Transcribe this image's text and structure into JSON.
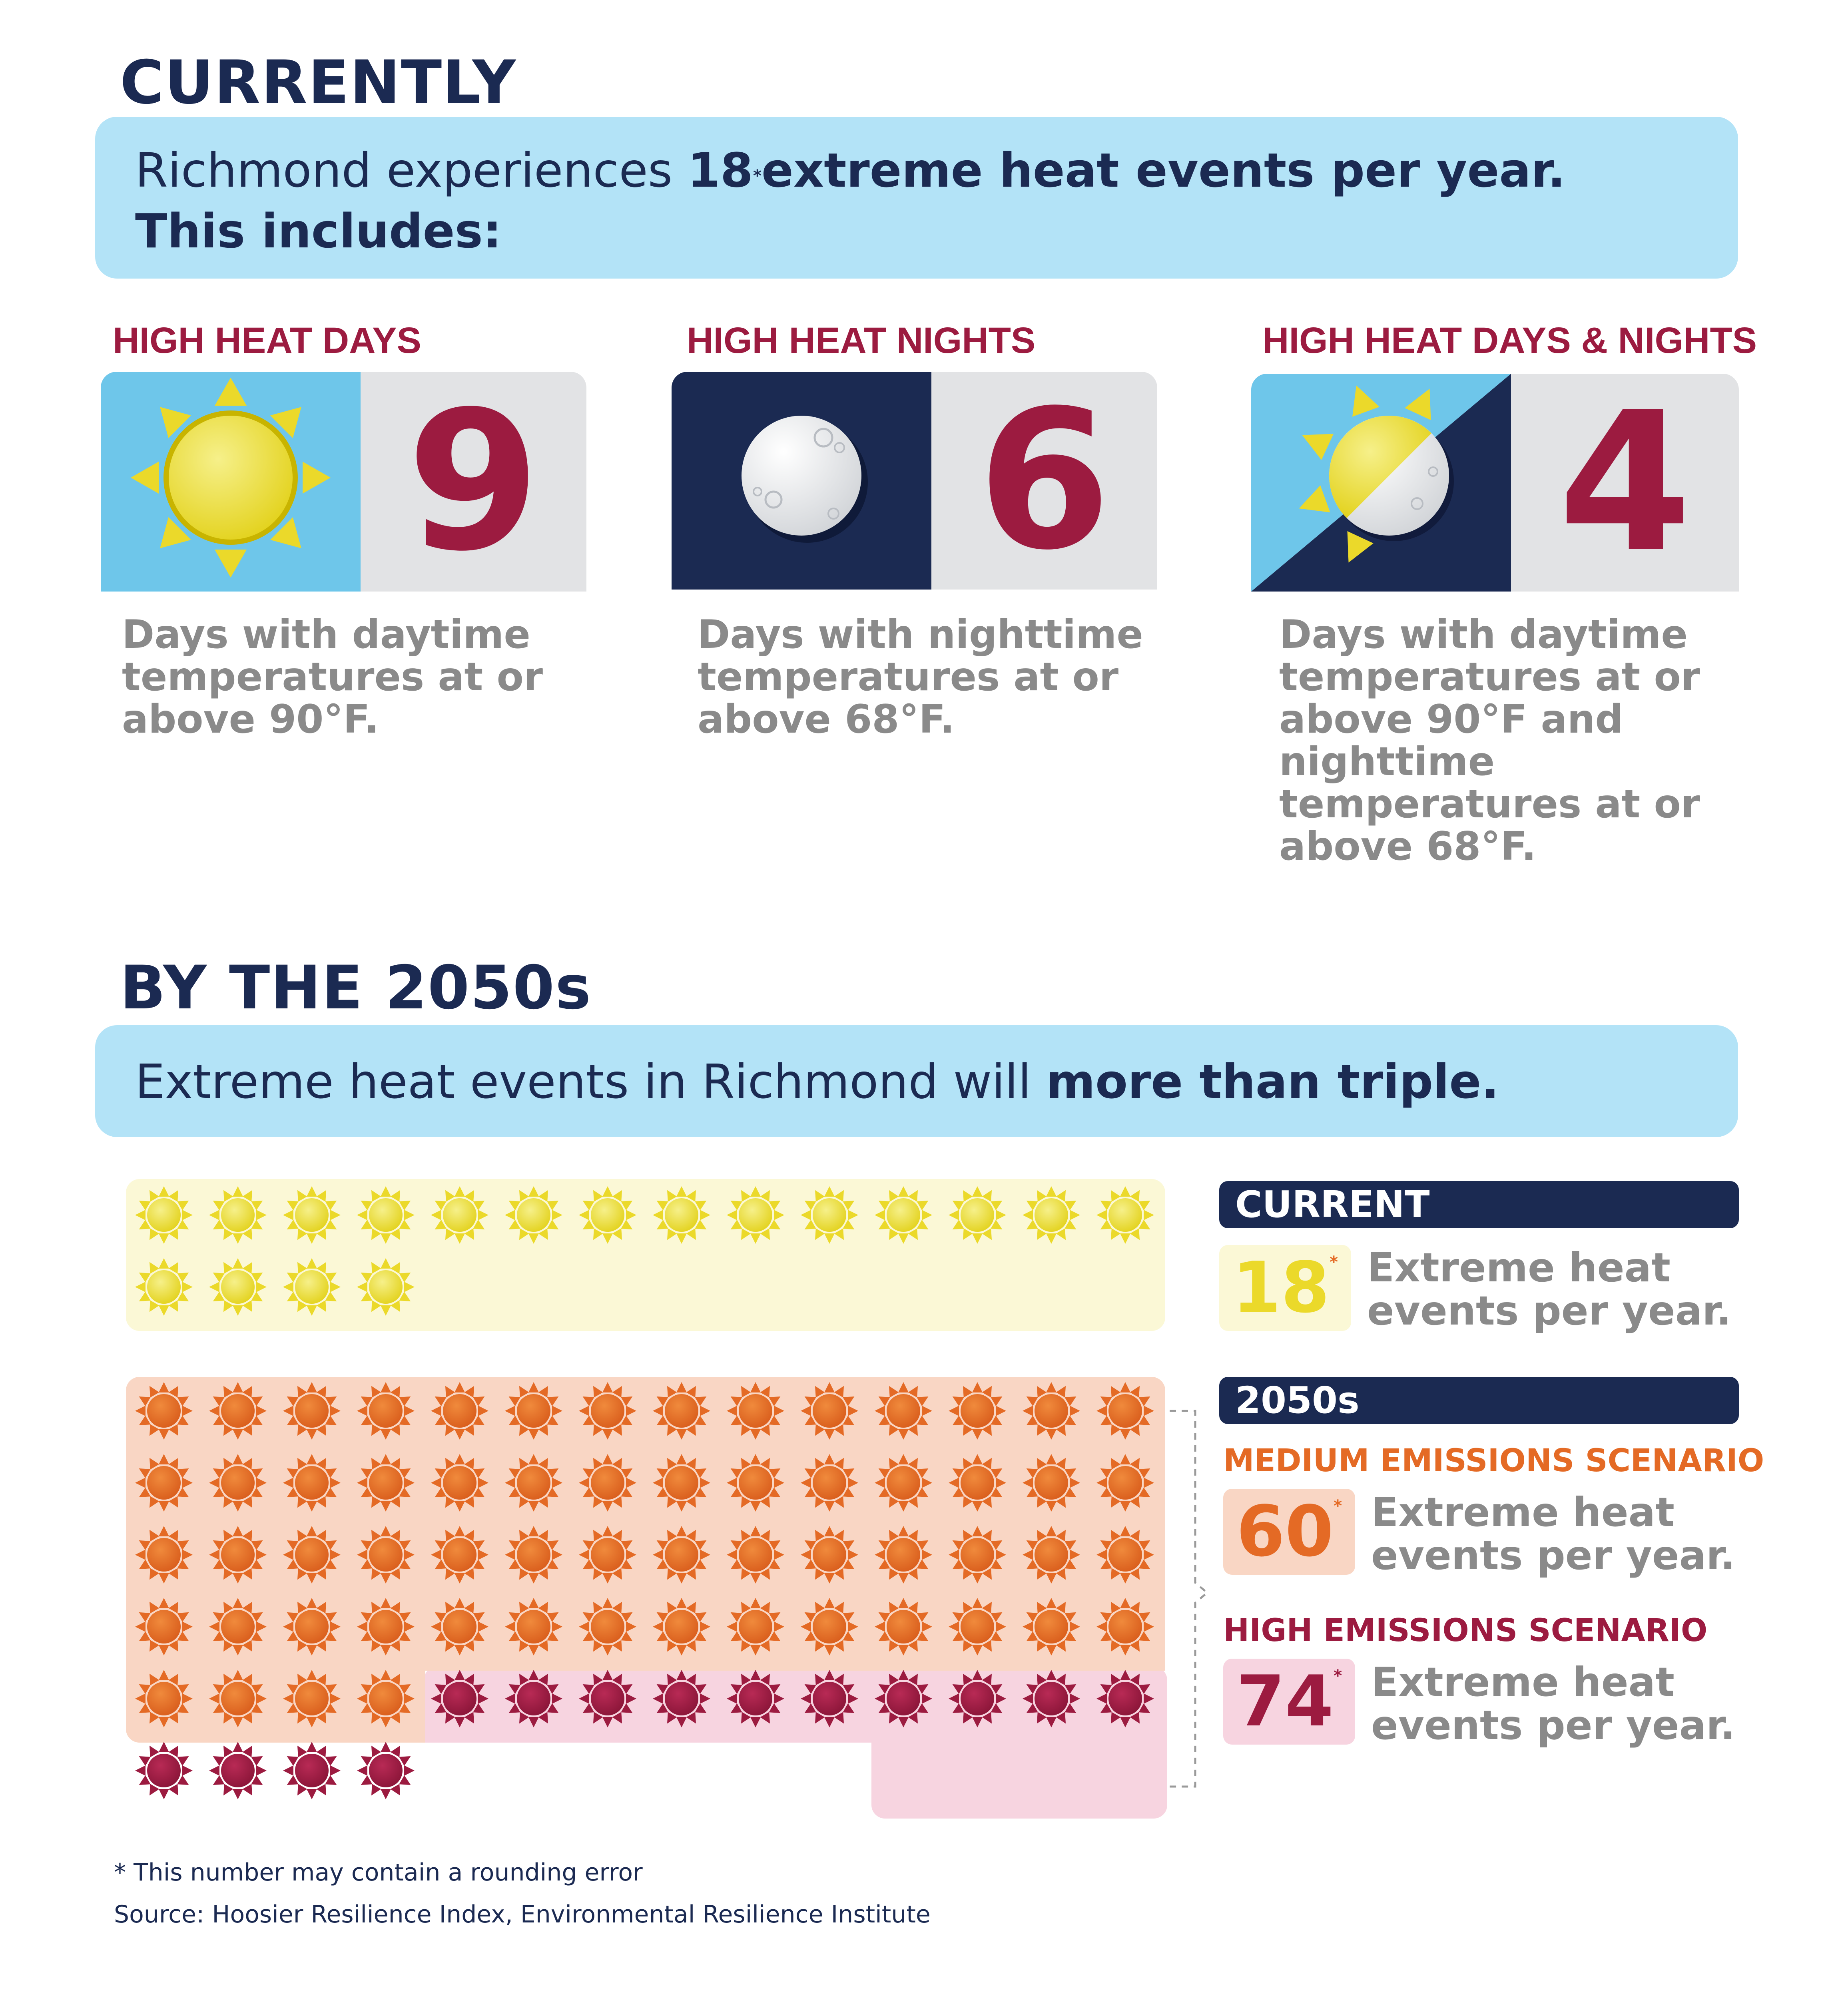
{
  "current": {
    "heading": "CURRENTLY",
    "banner": {
      "line1_a": "Richmond experiences ",
      "line1_num": "18",
      "line1_star": "*",
      "line1_b": "extreme heat events per year.",
      "line2": "This includes:"
    },
    "categories": [
      {
        "title": "HIGH HEAT DAYS",
        "icon": "sun-icon",
        "value": "9",
        "desc": [
          "Days with daytime",
          "temperatures at or",
          "above 90°F."
        ]
      },
      {
        "title": "HIGH HEAT NIGHTS",
        "icon": "moon-icon",
        "value": "6",
        "desc": [
          "Days with nighttime",
          "temperatures at or",
          "above 68°F."
        ]
      },
      {
        "title": "HIGH HEAT DAYS & NIGHTS",
        "icon": "sun-moon-icon",
        "value": "4",
        "desc": [
          "Days with daytime",
          "temperatures at or",
          "above 90°F and",
          "nighttime",
          "temperatures at or",
          "above 68°F."
        ]
      }
    ]
  },
  "future": {
    "heading": "BY THE 2050s",
    "banner": {
      "text_a": "Extreme heat events in Richmond will ",
      "text_b": "more than triple."
    },
    "current_label": "CURRENT",
    "current_value": "18",
    "current_star": "*",
    "current_desc": [
      "Extreme heat",
      "events per year."
    ],
    "label_2050s": "2050s",
    "medium": {
      "title": "MEDIUM EMISSIONS SCENARIO",
      "value": "60",
      "star": "*",
      "desc": [
        "Extreme heat",
        "events per year."
      ]
    },
    "high": {
      "title": "HIGH EMISSIONS SCENARIO",
      "value": "74",
      "star": "*",
      "desc": [
        "Extreme heat",
        "events per year."
      ]
    }
  },
  "chart_data": {
    "type": "pictogram",
    "unit": "extreme heat events per year",
    "series": [
      {
        "name": "Current",
        "value": 18,
        "color": "#ebd92a"
      },
      {
        "name": "2050s Medium emissions scenario",
        "value": 60,
        "color": "#e46a25"
      },
      {
        "name": "2050s High emissions scenario",
        "value": 74,
        "color": "#9c1b40"
      }
    ]
  },
  "footnote": "* This number may contain a rounding error",
  "source": "Source: Hoosier Resilience Index, Environmental Resilience Institute",
  "colors": {
    "navy": "#1b2a52",
    "banner": "#b3e3f7",
    "maroon": "#9c1b40",
    "orange": "#e46a25",
    "yellow": "#ebd92a",
    "gray": "#8a8a8a"
  }
}
